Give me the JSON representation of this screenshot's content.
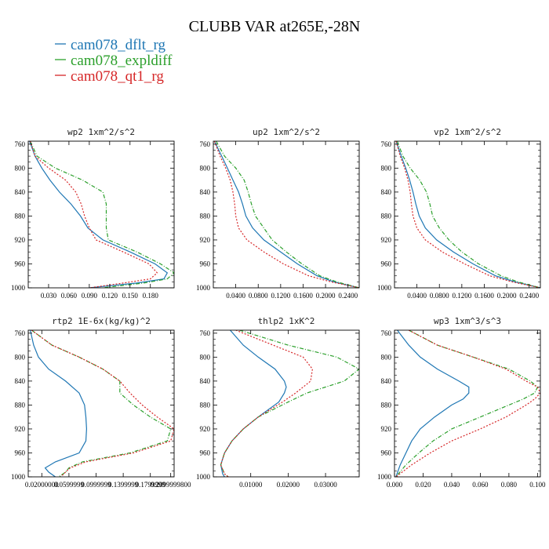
{
  "figure": {
    "title": "CLUBB VAR at265E,-28N",
    "legend": [
      {
        "label": "cam078_dflt_rg",
        "color": "#1f77b4",
        "dash": "solid"
      },
      {
        "label": "cam078_expldiff",
        "color": "#2ca02c",
        "dash": "dashdot"
      },
      {
        "label": "cam078_qt1_rg",
        "color": "#d62728",
        "dash": "dotted"
      }
    ]
  },
  "chart_data": [
    {
      "type": "line",
      "title": "wp2  1xm^2/s^2",
      "xlim": [
        0.0,
        0.215
      ],
      "ylim": [
        1000,
        755
      ],
      "yticks": [
        760,
        800,
        840,
        880,
        920,
        960,
        1000
      ],
      "xticks": [
        0.03,
        0.06,
        0.09,
        0.12,
        0.15,
        0.18
      ],
      "xticklabels": [
        "0.030",
        "0.060",
        "0.090",
        "0.120",
        "0.150",
        "0.180"
      ],
      "series": [
        {
          "name": "cam078_dflt_rg",
          "y": [
            755,
            780,
            800,
            820,
            840,
            860,
            880,
            900,
            920,
            940,
            960,
            975,
            985,
            992,
            1000
          ],
          "x": [
            0.002,
            0.01,
            0.02,
            0.032,
            0.046,
            0.063,
            0.077,
            0.088,
            0.11,
            0.15,
            0.187,
            0.205,
            0.2,
            0.16,
            0.09
          ]
        },
        {
          "name": "cam078_expldiff",
          "y": [
            755,
            780,
            800,
            820,
            840,
            860,
            880,
            900,
            920,
            940,
            960,
            975,
            985,
            992,
            1000
          ],
          "x": [
            0.003,
            0.013,
            0.04,
            0.08,
            0.11,
            0.115,
            0.115,
            0.115,
            0.118,
            0.16,
            0.195,
            0.215,
            0.205,
            0.17,
            0.11
          ]
        },
        {
          "name": "cam078_qt1_rg",
          "y": [
            755,
            780,
            800,
            820,
            840,
            860,
            880,
            900,
            920,
            940,
            960,
            975,
            985,
            992,
            1000
          ],
          "x": [
            0.003,
            0.01,
            0.03,
            0.055,
            0.07,
            0.078,
            0.083,
            0.09,
            0.1,
            0.14,
            0.178,
            0.19,
            0.18,
            0.14,
            0.09
          ]
        }
      ]
    },
    {
      "type": "line",
      "title": "up2  1xm^2/s^2",
      "xlim": [
        0.0,
        0.26
      ],
      "ylim": [
        1000,
        755
      ],
      "yticks": [
        760,
        800,
        840,
        880,
        920,
        960,
        1000
      ],
      "xticks": [
        0.04,
        0.08,
        0.12,
        0.16,
        0.2,
        0.24
      ],
      "xticklabels": [
        "0.0400",
        "0.0800",
        "0.1200",
        "0.1600",
        "0.2000",
        "0.2400"
      ],
      "series": [
        {
          "name": "cam078_dflt_rg",
          "y": [
            755,
            780,
            800,
            820,
            840,
            860,
            880,
            900,
            920,
            940,
            960,
            980,
            990,
            1000
          ],
          "x": [
            0.002,
            0.015,
            0.025,
            0.035,
            0.045,
            0.052,
            0.058,
            0.07,
            0.09,
            0.12,
            0.15,
            0.185,
            0.215,
            0.26
          ]
        },
        {
          "name": "cam078_expldiff",
          "y": [
            755,
            780,
            800,
            820,
            840,
            860,
            880,
            900,
            920,
            940,
            960,
            980,
            990,
            1000
          ],
          "x": [
            0.005,
            0.02,
            0.04,
            0.055,
            0.062,
            0.068,
            0.075,
            0.09,
            0.105,
            0.13,
            0.158,
            0.19,
            0.22,
            0.26
          ]
        },
        {
          "name": "cam078_qt1_rg",
          "y": [
            755,
            780,
            800,
            820,
            840,
            860,
            880,
            900,
            920,
            940,
            960,
            980,
            990,
            1000
          ],
          "x": [
            0.002,
            0.012,
            0.022,
            0.03,
            0.035,
            0.038,
            0.04,
            0.045,
            0.06,
            0.09,
            0.125,
            0.17,
            0.21,
            0.26
          ]
        }
      ]
    },
    {
      "type": "line",
      "title": "vp2  1xm^2/s^2",
      "xlim": [
        0.0,
        0.26
      ],
      "ylim": [
        1000,
        755
      ],
      "yticks": [
        760,
        800,
        840,
        880,
        920,
        960,
        1000
      ],
      "xticks": [
        0.04,
        0.08,
        0.12,
        0.16,
        0.2,
        0.24
      ],
      "xticklabels": [
        "0.0400",
        "0.0800",
        "0.1200",
        "0.1600",
        "0.2000",
        "0.2400"
      ],
      "series": [
        {
          "name": "cam078_dflt_rg",
          "y": [
            755,
            780,
            800,
            820,
            840,
            860,
            880,
            900,
            920,
            940,
            960,
            980,
            990,
            1000
          ],
          "x": [
            0.003,
            0.012,
            0.02,
            0.027,
            0.033,
            0.038,
            0.044,
            0.055,
            0.075,
            0.105,
            0.14,
            0.18,
            0.215,
            0.26
          ]
        },
        {
          "name": "cam078_expldiff",
          "y": [
            755,
            780,
            800,
            820,
            840,
            860,
            880,
            900,
            920,
            940,
            960,
            980,
            990,
            1000
          ],
          "x": [
            0.005,
            0.015,
            0.028,
            0.045,
            0.057,
            0.063,
            0.068,
            0.08,
            0.097,
            0.12,
            0.15,
            0.19,
            0.22,
            0.26
          ]
        },
        {
          "name": "cam078_qt1_rg",
          "y": [
            755,
            780,
            800,
            820,
            840,
            860,
            880,
            900,
            920,
            940,
            960,
            980,
            990,
            1000
          ],
          "x": [
            0.003,
            0.01,
            0.018,
            0.024,
            0.028,
            0.03,
            0.033,
            0.04,
            0.055,
            0.085,
            0.125,
            0.17,
            0.21,
            0.26
          ]
        }
      ]
    },
    {
      "type": "line",
      "title": "rtp2  1E-6x(kg/kg)^2",
      "xlim": [
        0.0,
        0.215
      ],
      "ylim": [
        1000,
        755
      ],
      "yticks": [
        760,
        800,
        840,
        880,
        920,
        960,
        1000
      ],
      "xticks": [
        0.02,
        0.06,
        0.1,
        0.14,
        0.18,
        0.21
      ],
      "xticklabels": [
        "0.02000000",
        "0.0599999",
        "0.0999999",
        "0.1399999",
        "0.1799999",
        "0.2099999800"
      ],
      "series": [
        {
          "name": "cam078_dflt_rg",
          "y": [
            755,
            780,
            800,
            820,
            840,
            860,
            880,
            900,
            920,
            940,
            960,
            975,
            985,
            992,
            1000
          ],
          "x": [
            0.003,
            0.008,
            0.015,
            0.03,
            0.055,
            0.075,
            0.083,
            0.085,
            0.086,
            0.085,
            0.075,
            0.04,
            0.025,
            0.03,
            0.04
          ]
        },
        {
          "name": "cam078_expldiff",
          "y": [
            755,
            780,
            800,
            820,
            840,
            860,
            880,
            900,
            920,
            940,
            960,
            975,
            985,
            992,
            1000
          ],
          "x": [
            0.005,
            0.035,
            0.075,
            0.11,
            0.135,
            0.135,
            0.155,
            0.18,
            0.21,
            0.205,
            0.15,
            0.08,
            0.06,
            0.055,
            0.045
          ]
        },
        {
          "name": "cam078_qt1_rg",
          "y": [
            755,
            780,
            800,
            820,
            840,
            860,
            880,
            900,
            920,
            940,
            960,
            975,
            985,
            992,
            1000
          ],
          "x": [
            0.005,
            0.035,
            0.075,
            0.11,
            0.135,
            0.15,
            0.168,
            0.19,
            0.215,
            0.21,
            0.155,
            0.085,
            0.062,
            0.055,
            0.048
          ]
        }
      ]
    },
    {
      "type": "line",
      "title": "thlp2  1xK^2",
      "xlim": [
        0.0,
        0.039
      ],
      "ylim": [
        1000,
        755
      ],
      "yticks": [
        760,
        800,
        840,
        880,
        920,
        960,
        1000
      ],
      "xticks": [
        0.01,
        0.02,
        0.03
      ],
      "xticklabels": [
        "0.01000",
        "0.02000",
        "0.03000"
      ],
      "series": [
        {
          "name": "cam078_dflt_rg",
          "y": [
            755,
            780,
            800,
            820,
            840,
            850,
            860,
            875,
            900,
            920,
            940,
            960,
            980,
            995,
            1000
          ],
          "x": [
            0.0045,
            0.008,
            0.012,
            0.0165,
            0.019,
            0.0195,
            0.019,
            0.0175,
            0.012,
            0.008,
            0.005,
            0.003,
            0.002,
            0.0025,
            0.003
          ]
        },
        {
          "name": "cam078_expldiff",
          "y": [
            755,
            780,
            800,
            820,
            840,
            850,
            860,
            875,
            900,
            920,
            940,
            960,
            980,
            995,
            1000
          ],
          "x": [
            0.007,
            0.02,
            0.033,
            0.039,
            0.035,
            0.03,
            0.025,
            0.02,
            0.012,
            0.008,
            0.005,
            0.003,
            0.002,
            0.003,
            0.004
          ]
        },
        {
          "name": "cam078_qt1_rg",
          "y": [
            755,
            780,
            800,
            820,
            840,
            850,
            860,
            875,
            900,
            920,
            940,
            960,
            980,
            995,
            1000
          ],
          "x": [
            0.006,
            0.016,
            0.024,
            0.0265,
            0.026,
            0.024,
            0.022,
            0.0185,
            0.012,
            0.008,
            0.005,
            0.003,
            0.002,
            0.003,
            0.004
          ]
        }
      ]
    },
    {
      "type": "line",
      "title": "wp3  1xm^3/s^3",
      "xlim": [
        0.0,
        0.102
      ],
      "ylim": [
        1000,
        755
      ],
      "yticks": [
        760,
        800,
        840,
        880,
        920,
        960,
        1000
      ],
      "xticks": [
        0.0,
        0.02,
        0.04,
        0.06,
        0.08,
        0.1
      ],
      "xticklabels": [
        "0.000",
        "0.020",
        "0.040",
        "0.060",
        "0.080",
        "0.100"
      ],
      "series": [
        {
          "name": "cam078_dflt_rg",
          "y": [
            755,
            780,
            800,
            820,
            840,
            850,
            860,
            870,
            880,
            900,
            920,
            940,
            960,
            980,
            1000
          ],
          "x": [
            0.002,
            0.01,
            0.018,
            0.03,
            0.045,
            0.052,
            0.052,
            0.048,
            0.04,
            0.028,
            0.018,
            0.012,
            0.008,
            0.004,
            0.001
          ]
        },
        {
          "name": "cam078_expldiff",
          "y": [
            755,
            780,
            800,
            820,
            840,
            850,
            860,
            870,
            880,
            900,
            920,
            940,
            960,
            980,
            1000
          ],
          "x": [
            0.01,
            0.03,
            0.055,
            0.08,
            0.095,
            0.1,
            0.098,
            0.09,
            0.08,
            0.06,
            0.04,
            0.027,
            0.017,
            0.008,
            0.001
          ]
        },
        {
          "name": "cam078_qt1_rg",
          "y": [
            755,
            780,
            800,
            820,
            840,
            850,
            860,
            870,
            880,
            900,
            920,
            940,
            960,
            980,
            1000
          ],
          "x": [
            0.01,
            0.03,
            0.055,
            0.078,
            0.092,
            0.1,
            0.102,
            0.098,
            0.092,
            0.078,
            0.06,
            0.04,
            0.025,
            0.012,
            0.001
          ]
        }
      ]
    }
  ]
}
